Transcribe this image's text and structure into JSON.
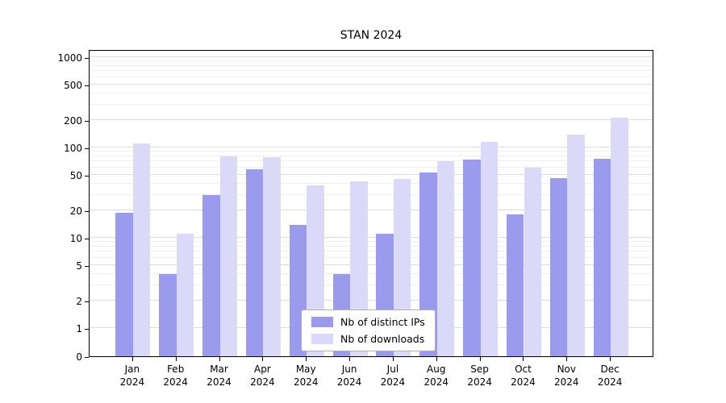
{
  "chart_data": {
    "type": "bar",
    "title": "STAN 2024",
    "categories": [
      "Jan",
      "Feb",
      "Mar",
      "Apr",
      "May",
      "Jun",
      "Jul",
      "Aug",
      "Sep",
      "Oct",
      "Nov",
      "Dec"
    ],
    "year_label": "2024",
    "series": [
      {
        "name": "Nb of distinct IPs",
        "color": "#9b9bee",
        "values": [
          19,
          4,
          30,
          57,
          14,
          4,
          11,
          53,
          73,
          18,
          46,
          75
        ]
      },
      {
        "name": "Nb of downloads",
        "color": "#dadaf8",
        "values": [
          110,
          11,
          80,
          78,
          38,
          42,
          45,
          70,
          115,
          60,
          140,
          215
        ]
      }
    ],
    "yscale": "symlog",
    "y_ticks": [
      0,
      1,
      2,
      5,
      10,
      20,
      50,
      100,
      200,
      500,
      1000
    ],
    "y_minor_ticks": [
      3,
      4,
      6,
      7,
      8,
      9,
      30,
      40,
      60,
      70,
      80,
      90,
      300,
      400,
      600,
      700,
      800,
      900
    ],
    "ylim": [
      0,
      1227
    ],
    "grid": "horizontal",
    "legend_position": "bottom-center"
  },
  "colors": {
    "background": "#ffffff",
    "axis": "#000000",
    "grid_major": "#dcdcdc",
    "grid_minor": "#efefef",
    "text": "#000000"
  }
}
